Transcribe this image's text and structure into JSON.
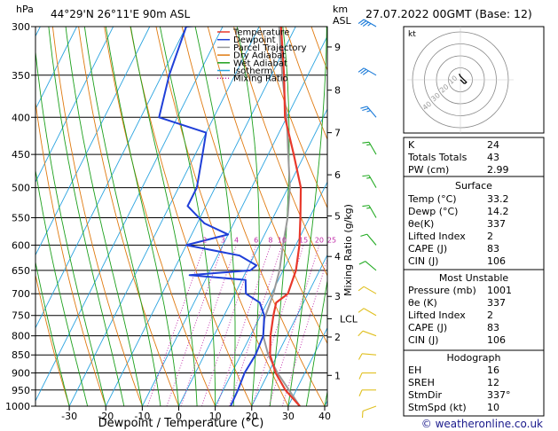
{
  "header": {
    "hpa_label": "hPa",
    "location": "44°29'N  26°11'E  90m  ASL",
    "km_label": "km",
    "asl_label": "ASL",
    "datetime": "27.07.2022  00GMT  (Base: 12)"
  },
  "chart_data": {
    "type": "line",
    "subtype": "skew-T log-p diagram",
    "xlabel": "Dewpoint / Temperature (°C)",
    "ylabel": "hPa",
    "y_right_label": "Mixing Ratio (g/kg)",
    "pressure_levels": [
      300,
      350,
      400,
      450,
      500,
      550,
      600,
      650,
      700,
      750,
      800,
      850,
      900,
      950,
      1000
    ],
    "x_ticks": [
      -30,
      -20,
      -10,
      0,
      10,
      20,
      30,
      40
    ],
    "xlim": [
      -40,
      40
    ],
    "ylim": [
      1000,
      300
    ],
    "y_scale": "log",
    "km_ticks": [
      {
        "km": 1,
        "p": 907
      },
      {
        "km": 2,
        "p": 803
      },
      {
        "km": 3,
        "p": 706
      },
      {
        "km": 4,
        "p": 622
      },
      {
        "km": 5,
        "p": 547
      },
      {
        "km": 6,
        "p": 480
      },
      {
        "km": 7,
        "p": 420
      },
      {
        "km": 8,
        "p": 367
      },
      {
        "km": 9,
        "p": 320
      }
    ],
    "lcl": {
      "label": "LCL",
      "p": 758
    },
    "mixing_ratio_labels": [
      "2",
      "3",
      "4",
      "6",
      "8",
      "10",
      "15",
      "20",
      "25"
    ],
    "mixing_ratio_values": [
      2,
      3,
      4,
      6,
      8,
      10,
      15,
      20,
      25
    ],
    "legend": [
      {
        "name": "Temperature",
        "color": "#e8382b",
        "style": "solid"
      },
      {
        "name": "Dewpoint",
        "color": "#1f3fd8",
        "style": "solid"
      },
      {
        "name": "Parcel Trajectory",
        "color": "#999999",
        "style": "solid"
      },
      {
        "name": "Dry Adiabat",
        "color": "#e07a10",
        "style": "solid"
      },
      {
        "name": "Wet Adiabat",
        "color": "#1ca01c",
        "style": "solid"
      },
      {
        "name": "Isotherm",
        "color": "#2aa4e0",
        "style": "solid"
      },
      {
        "name": "Mixing Ratio",
        "color": "#c02aa8",
        "style": "dotted"
      }
    ],
    "series": [
      {
        "name": "Temperature",
        "color": "#e8382b",
        "points": [
          [
            1000,
            33.2
          ],
          [
            950,
            27
          ],
          [
            900,
            22
          ],
          [
            850,
            18
          ],
          [
            800,
            15.5
          ],
          [
            750,
            13.5
          ],
          [
            720,
            12.5
          ],
          [
            700,
            14.5
          ],
          [
            650,
            13.5
          ],
          [
            600,
            11
          ],
          [
            550,
            7.5
          ],
          [
            500,
            3.5
          ],
          [
            450,
            -3
          ],
          [
            400,
            -10.5
          ],
          [
            350,
            -16.5
          ],
          [
            300,
            -24
          ]
        ]
      },
      {
        "name": "Dewpoint",
        "color": "#1f3fd8",
        "points": [
          [
            1000,
            14.2
          ],
          [
            950,
            14
          ],
          [
            900,
            13.5
          ],
          [
            850,
            14
          ],
          [
            800,
            13.5
          ],
          [
            750,
            11
          ],
          [
            720,
            8
          ],
          [
            700,
            3
          ],
          [
            670,
            1
          ],
          [
            660,
            -15
          ],
          [
            650,
            1
          ],
          [
            640,
            2
          ],
          [
            620,
            -4
          ],
          [
            600,
            -20
          ],
          [
            580,
            -10
          ],
          [
            560,
            -18
          ],
          [
            530,
            -25
          ],
          [
            500,
            -25
          ],
          [
            450,
            -28
          ],
          [
            420,
            -30
          ],
          [
            400,
            -45
          ],
          [
            350,
            -48
          ],
          [
            300,
            -50
          ],
          [
            298,
            -40
          ]
        ]
      },
      {
        "name": "Parcel Trajectory",
        "color": "#999999",
        "points": [
          [
            1000,
            33.2
          ],
          [
            950,
            28
          ],
          [
            900,
            22.5
          ],
          [
            850,
            17.5
          ],
          [
            800,
            13.5
          ],
          [
            758,
            11.5
          ],
          [
            700,
            10.5
          ],
          [
            650,
            9
          ],
          [
            600,
            6.5
          ],
          [
            550,
            4
          ],
          [
            500,
            0.5
          ],
          [
            450,
            -4.5
          ],
          [
            400,
            -10
          ],
          [
            350,
            -17
          ],
          [
            300,
            -24.5
          ]
        ]
      }
    ],
    "wind_barbs": [
      {
        "p": 1000,
        "dir": 250,
        "kt": 10
      },
      {
        "p": 950,
        "dir": 270,
        "kt": 10
      },
      {
        "p": 900,
        "dir": 270,
        "kt": 10
      },
      {
        "p": 850,
        "dir": 275,
        "kt": 10
      },
      {
        "p": 800,
        "dir": 290,
        "kt": 10
      },
      {
        "p": 750,
        "dir": 300,
        "kt": 10
      },
      {
        "p": 700,
        "dir": 300,
        "kt": 10
      },
      {
        "p": 650,
        "dir": 310,
        "kt": 10
      },
      {
        "p": 600,
        "dir": 320,
        "kt": 10
      },
      {
        "p": 550,
        "dir": 330,
        "kt": 15
      },
      {
        "p": 500,
        "dir": 330,
        "kt": 15
      },
      {
        "p": 450,
        "dir": 330,
        "kt": 15
      },
      {
        "p": 400,
        "dir": 320,
        "kt": 25
      },
      {
        "p": 350,
        "dir": 300,
        "kt": 30
      },
      {
        "p": 300,
        "dir": 300,
        "kt": 35
      }
    ],
    "hodograph": {
      "label": "kt",
      "ring_labels": [
        "10",
        "20",
        "30",
        "40"
      ],
      "points": [
        [
          0,
          0
        ],
        [
          1,
          -1
        ],
        [
          2,
          -2
        ],
        [
          3,
          -3
        ],
        [
          4,
          -3
        ],
        [
          5,
          -2
        ],
        [
          4,
          -1
        ],
        [
          2,
          1
        ],
        [
          0,
          3
        ],
        [
          -1,
          5
        ]
      ]
    }
  },
  "indices": {
    "k_label": "K",
    "k_value": "24",
    "tt_label": "Totals Totals",
    "tt_value": "43",
    "pw_label": "PW (cm)",
    "pw_value": "2.99"
  },
  "surface": {
    "title": "Surface",
    "rows": [
      {
        "label": "Temp (°C)",
        "value": "33.2"
      },
      {
        "label": "Dewp (°C)",
        "value": "14.2"
      },
      {
        "label": "θe(K)",
        "value": "337"
      },
      {
        "label": "Lifted Index",
        "value": "2"
      },
      {
        "label": "CAPE (J)",
        "value": "83"
      },
      {
        "label": "CIN (J)",
        "value": "106"
      }
    ]
  },
  "most_unstable": {
    "title": "Most Unstable",
    "rows": [
      {
        "label": "Pressure (mb)",
        "value": "1001"
      },
      {
        "label": "θe (K)",
        "value": "337"
      },
      {
        "label": "Lifted Index",
        "value": "2"
      },
      {
        "label": "CAPE (J)",
        "value": "83"
      },
      {
        "label": "CIN (J)",
        "value": "106"
      }
    ]
  },
  "hodograph_stats": {
    "title": "Hodograph",
    "rows": [
      {
        "label": "EH",
        "value": "16"
      },
      {
        "label": "SREH",
        "value": "12"
      },
      {
        "label": "StmDir",
        "value": "337°"
      },
      {
        "label": "StmSpd (kt)",
        "value": "10"
      }
    ]
  },
  "footer": {
    "copyright": "© weatheronline.co.uk"
  }
}
